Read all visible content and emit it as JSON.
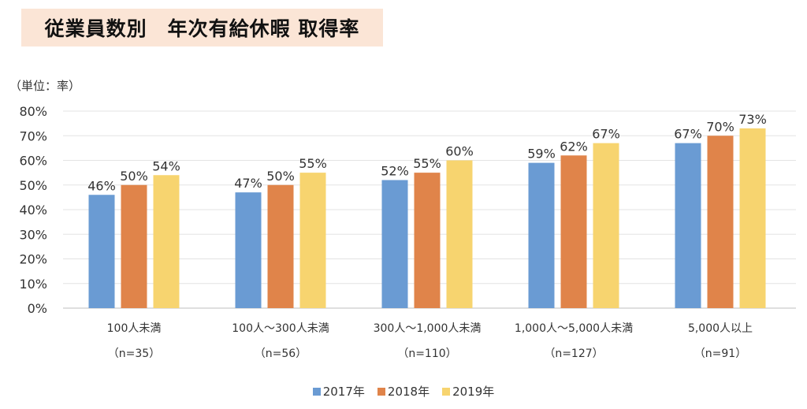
{
  "chart_data": {
    "type": "bar",
    "title": "従業員数別　年次有給休暇 取得率",
    "unit_label": "（単位：率）",
    "categories": [
      "100人未満",
      "100人～300人未満",
      "300人～1,000人未満",
      "1,000人～5,000人未満",
      "5,000人以上"
    ],
    "category_n": [
      "（n=35）",
      "（n=56）",
      "（n=110）",
      "（n=127）",
      "（n=91）"
    ],
    "series": [
      {
        "name": "2017年",
        "color": "#6a9bd3",
        "values": [
          46,
          47,
          52,
          59,
          67
        ]
      },
      {
        "name": "2018年",
        "color": "#e0844a",
        "values": [
          50,
          50,
          55,
          62,
          70
        ]
      },
      {
        "name": "2019年",
        "color": "#f7d46f",
        "values": [
          54,
          55,
          60,
          67,
          73
        ]
      }
    ],
    "ylim": [
      0,
      80
    ],
    "yticks": [
      "0%",
      "10%",
      "20%",
      "30%",
      "40%",
      "50%",
      "60%",
      "70%",
      "80%"
    ],
    "grid": true,
    "legend_position": "bottom"
  }
}
